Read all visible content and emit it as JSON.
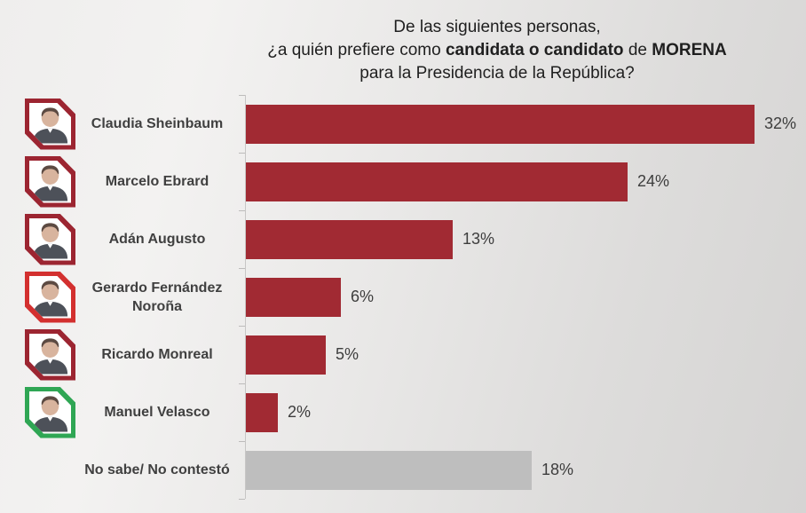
{
  "title": {
    "line1": "De las siguientes personas,",
    "line2_pre": "¿a quién prefiere como ",
    "line2_bold1": "candidata o candidato",
    "line2_mid": " de ",
    "line2_bold2": "MORENA",
    "line3": "para la Presidencia de la República?"
  },
  "chart_data": {
    "type": "bar",
    "orientation": "horizontal",
    "title": "De las siguientes personas, ¿a quién prefiere como candidata o candidato de MORENA para la Presidencia de la República?",
    "categories": [
      "Claudia Sheinbaum",
      "Marcelo Ebrard",
      "Adán Augusto",
      "Gerardo Fernández Noroña",
      "Ricardo Monreal",
      "Manuel Velasco",
      "No sabe/ No contestó"
    ],
    "values": [
      32,
      24,
      13,
      6,
      5,
      2,
      18
    ],
    "value_labels": [
      "32%",
      "24%",
      "13%",
      "6%",
      "5%",
      "2%",
      "18%"
    ],
    "xlabel": "",
    "ylabel": "",
    "xlim": [
      0,
      35
    ],
    "grid": false,
    "legend": false,
    "rows": [
      {
        "name": "Claudia Sheinbaum",
        "value": 32,
        "label": "32%",
        "bar_color": "#A12A33",
        "badge_color": "#9C2531"
      },
      {
        "name": "Marcelo Ebrard",
        "value": 24,
        "label": "24%",
        "bar_color": "#A12A33",
        "badge_color": "#9C2531"
      },
      {
        "name": "Adán Augusto",
        "value": 13,
        "label": "13%",
        "bar_color": "#A12A33",
        "badge_color": "#9C2531"
      },
      {
        "name": "Gerardo Fernández Noroña",
        "value": 6,
        "label": "6%",
        "bar_color": "#A12A33",
        "badge_color": "#D3302F"
      },
      {
        "name": "Ricardo Monreal",
        "value": 5,
        "label": "5%",
        "bar_color": "#A12A33",
        "badge_color": "#9C2531"
      },
      {
        "name": "Manuel Velasco",
        "value": 2,
        "label": "2%",
        "bar_color": "#A12A33",
        "badge_color": "#2FA654"
      },
      {
        "name": "No sabe/ No contestó",
        "value": 18,
        "label": "18%",
        "bar_color": "#BEBEBE",
        "badge_color": null
      }
    ]
  },
  "colors": {
    "bar_maroon": "#A12A33",
    "bar_gray": "#BEBEBE",
    "badge_maroon": "#9C2531",
    "badge_red": "#D3302F",
    "badge_green": "#2FA654",
    "text_dark": "#3E3E3E",
    "axis": "#C7C6C5"
  }
}
